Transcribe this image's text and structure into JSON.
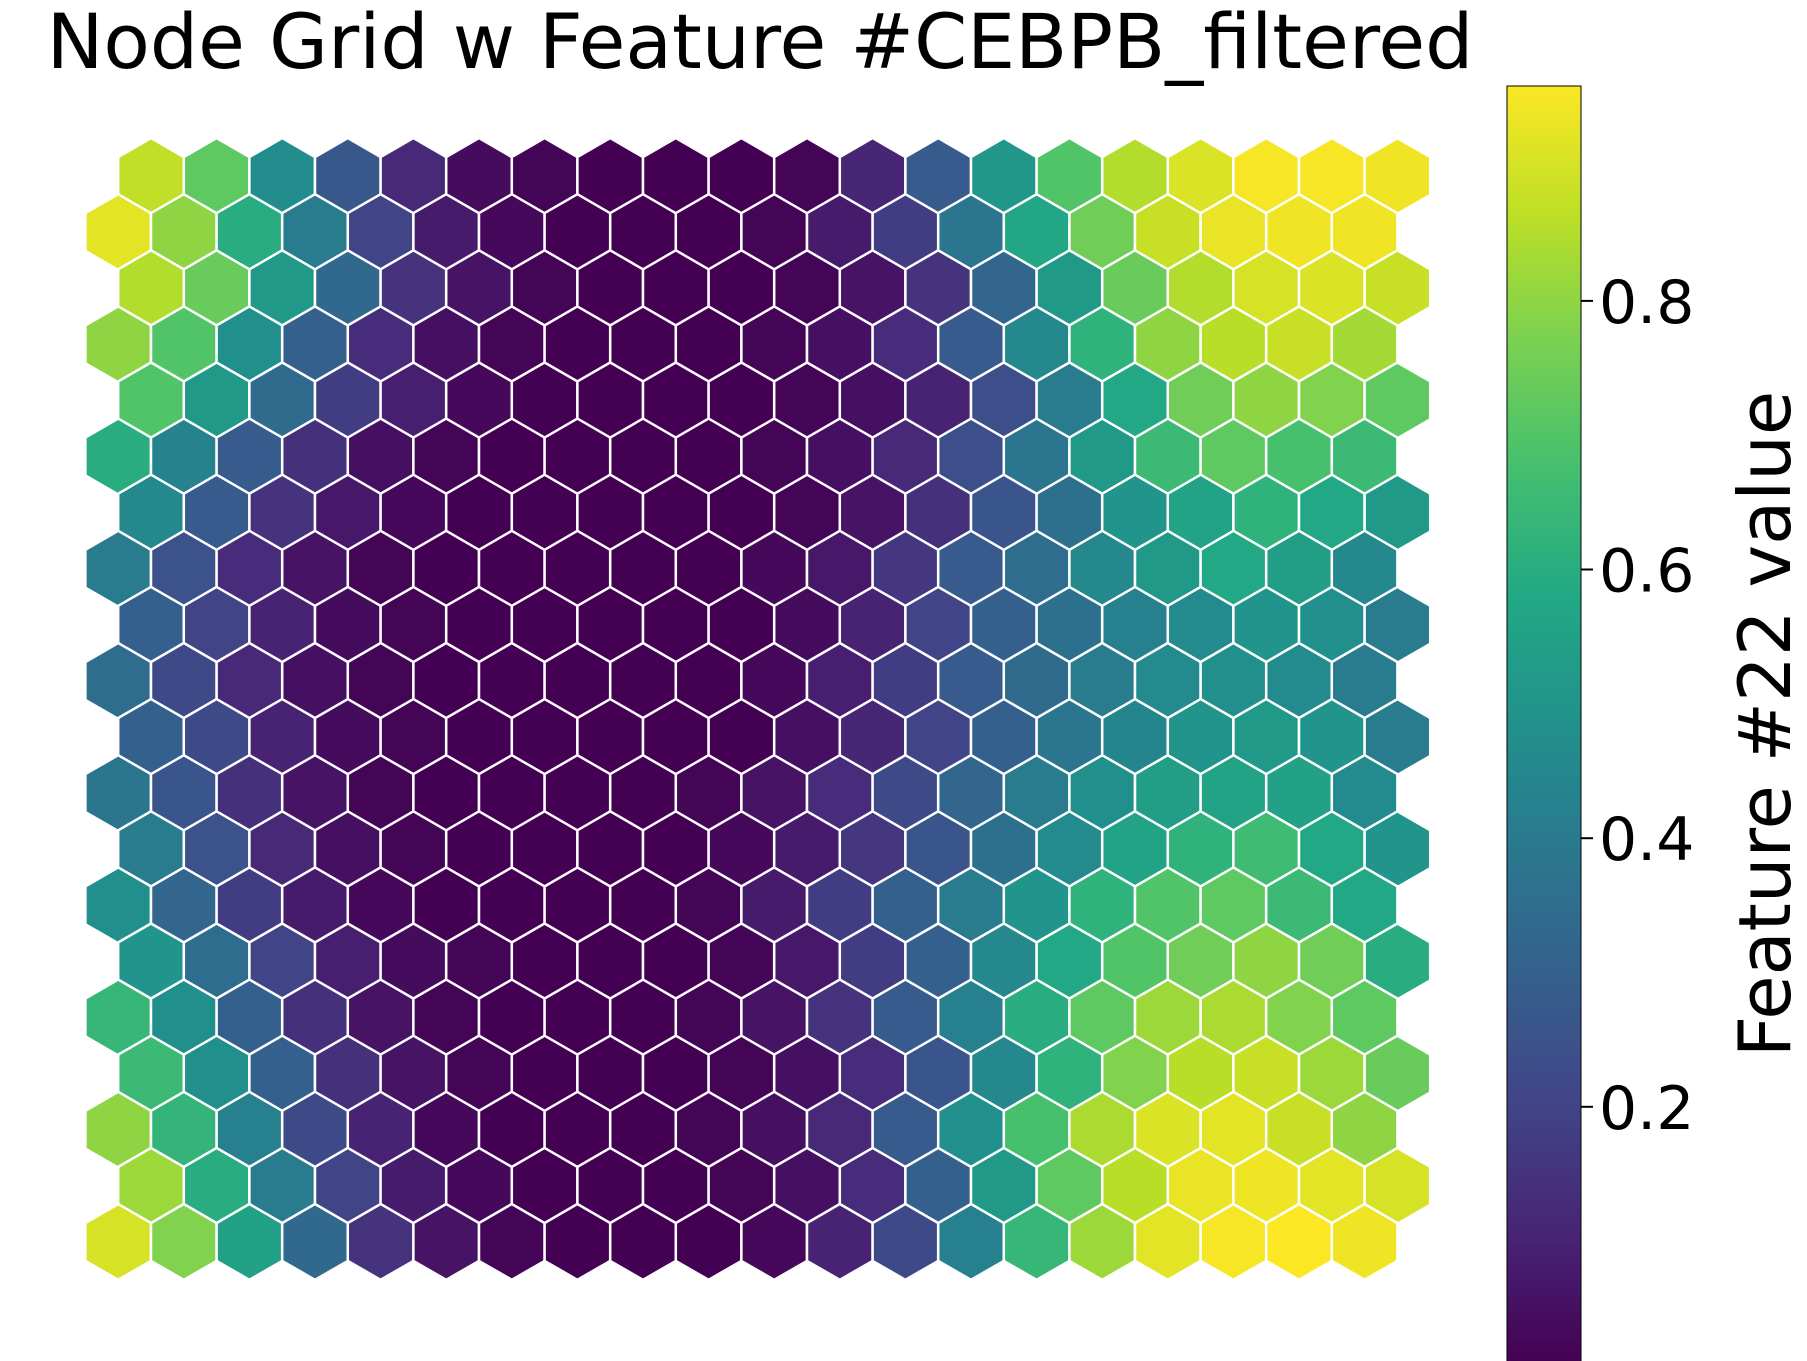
{
  "chart_data": {
    "type": "heatmap",
    "title": "Node Grid w Feature #CEBPB_filtered",
    "colorbar": {
      "label": "Feature #22 value",
      "range": [
        0.01,
        0.96
      ],
      "ticks": [
        0.2,
        0.4,
        0.6,
        0.8
      ],
      "tick_labels": [
        "0.2",
        "0.4",
        "0.6",
        "0.8"
      ],
      "colormap": "viridis"
    },
    "grid": {
      "rows": 20,
      "cols": 20,
      "layout": "hexagonal",
      "row_order": "top-to-bottom"
    },
    "values": [
      [
        0.87,
        0.72,
        0.47,
        0.27,
        0.12,
        0.04,
        0.02,
        0.01,
        0.01,
        0.01,
        0.02,
        0.11,
        0.28,
        0.51,
        0.7,
        0.85,
        0.91,
        0.95,
        0.95,
        0.94
      ],
      [
        0.92,
        0.8,
        0.6,
        0.4,
        0.2,
        0.08,
        0.03,
        0.01,
        0.01,
        0.01,
        0.02,
        0.08,
        0.18,
        0.38,
        0.57,
        0.75,
        0.88,
        0.93,
        0.94,
        0.94
      ],
      [
        0.85,
        0.74,
        0.52,
        0.33,
        0.15,
        0.06,
        0.02,
        0.01,
        0.01,
        0.01,
        0.02,
        0.06,
        0.15,
        0.32,
        0.52,
        0.74,
        0.85,
        0.9,
        0.91,
        0.88
      ],
      [
        0.8,
        0.7,
        0.48,
        0.3,
        0.13,
        0.05,
        0.02,
        0.01,
        0.01,
        0.01,
        0.02,
        0.05,
        0.13,
        0.28,
        0.45,
        0.62,
        0.8,
        0.86,
        0.88,
        0.83
      ],
      [
        0.7,
        0.52,
        0.34,
        0.18,
        0.09,
        0.03,
        0.01,
        0.01,
        0.01,
        0.01,
        0.02,
        0.05,
        0.1,
        0.24,
        0.4,
        0.58,
        0.75,
        0.8,
        0.78,
        0.72
      ],
      [
        0.6,
        0.43,
        0.28,
        0.14,
        0.05,
        0.02,
        0.01,
        0.01,
        0.01,
        0.01,
        0.02,
        0.05,
        0.12,
        0.24,
        0.38,
        0.52,
        0.65,
        0.72,
        0.68,
        0.65
      ],
      [
        0.45,
        0.28,
        0.15,
        0.07,
        0.03,
        0.01,
        0.01,
        0.01,
        0.01,
        0.01,
        0.02,
        0.06,
        0.14,
        0.26,
        0.36,
        0.5,
        0.56,
        0.62,
        0.58,
        0.52
      ],
      [
        0.4,
        0.25,
        0.13,
        0.06,
        0.02,
        0.01,
        0.01,
        0.01,
        0.01,
        0.01,
        0.03,
        0.07,
        0.16,
        0.28,
        0.35,
        0.45,
        0.52,
        0.58,
        0.54,
        0.45
      ],
      [
        0.3,
        0.2,
        0.1,
        0.04,
        0.02,
        0.01,
        0.01,
        0.01,
        0.01,
        0.01,
        0.04,
        0.1,
        0.2,
        0.3,
        0.36,
        0.42,
        0.46,
        0.5,
        0.48,
        0.4
      ],
      [
        0.35,
        0.22,
        0.12,
        0.05,
        0.02,
        0.01,
        0.01,
        0.01,
        0.01,
        0.01,
        0.03,
        0.09,
        0.18,
        0.28,
        0.34,
        0.4,
        0.46,
        0.48,
        0.46,
        0.4
      ],
      [
        0.3,
        0.22,
        0.1,
        0.04,
        0.02,
        0.01,
        0.01,
        0.01,
        0.01,
        0.01,
        0.05,
        0.11,
        0.2,
        0.3,
        0.38,
        0.44,
        0.5,
        0.52,
        0.5,
        0.4
      ],
      [
        0.38,
        0.26,
        0.14,
        0.06,
        0.02,
        0.01,
        0.01,
        0.01,
        0.01,
        0.02,
        0.06,
        0.13,
        0.22,
        0.32,
        0.4,
        0.48,
        0.54,
        0.56,
        0.55,
        0.46
      ],
      [
        0.4,
        0.25,
        0.12,
        0.05,
        0.02,
        0.01,
        0.01,
        0.01,
        0.01,
        0.03,
        0.08,
        0.16,
        0.26,
        0.36,
        0.46,
        0.56,
        0.62,
        0.66,
        0.58,
        0.5
      ],
      [
        0.48,
        0.32,
        0.18,
        0.08,
        0.03,
        0.01,
        0.01,
        0.01,
        0.01,
        0.02,
        0.08,
        0.18,
        0.3,
        0.4,
        0.5,
        0.62,
        0.7,
        0.72,
        0.65,
        0.58
      ],
      [
        0.5,
        0.35,
        0.2,
        0.09,
        0.04,
        0.02,
        0.01,
        0.01,
        0.01,
        0.02,
        0.07,
        0.18,
        0.3,
        0.45,
        0.58,
        0.7,
        0.75,
        0.8,
        0.75,
        0.6
      ],
      [
        0.64,
        0.48,
        0.3,
        0.14,
        0.06,
        0.02,
        0.01,
        0.01,
        0.01,
        0.02,
        0.06,
        0.15,
        0.28,
        0.42,
        0.6,
        0.72,
        0.82,
        0.84,
        0.78,
        0.72
      ],
      [
        0.65,
        0.48,
        0.3,
        0.14,
        0.06,
        0.02,
        0.01,
        0.01,
        0.01,
        0.02,
        0.05,
        0.13,
        0.26,
        0.45,
        0.62,
        0.78,
        0.86,
        0.88,
        0.82,
        0.74
      ],
      [
        0.8,
        0.63,
        0.42,
        0.22,
        0.1,
        0.03,
        0.01,
        0.01,
        0.01,
        0.02,
        0.05,
        0.12,
        0.28,
        0.48,
        0.68,
        0.84,
        0.91,
        0.92,
        0.88,
        0.8
      ],
      [
        0.82,
        0.6,
        0.4,
        0.2,
        0.08,
        0.03,
        0.01,
        0.01,
        0.01,
        0.02,
        0.05,
        0.13,
        0.3,
        0.52,
        0.72,
        0.86,
        0.93,
        0.94,
        0.92,
        0.9
      ],
      [
        0.9,
        0.78,
        0.55,
        0.33,
        0.15,
        0.06,
        0.02,
        0.01,
        0.01,
        0.01,
        0.03,
        0.1,
        0.22,
        0.42,
        0.64,
        0.82,
        0.92,
        0.95,
        0.96,
        0.94
      ]
    ]
  }
}
